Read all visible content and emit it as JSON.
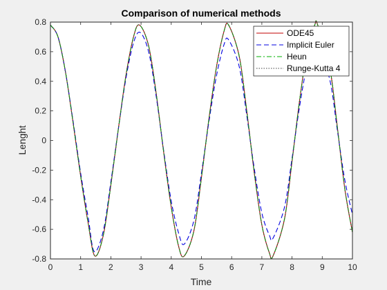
{
  "chart_data": {
    "type": "line",
    "title": "Comparison of numerical methods",
    "xlabel": "Time",
    "ylabel": "Lenght",
    "xlim": [
      0,
      10
    ],
    "ylim": [
      -0.8,
      0.8
    ],
    "xticks": [
      0,
      1,
      2,
      3,
      4,
      5,
      6,
      7,
      8,
      9,
      10
    ],
    "yticks": [
      -0.8,
      -0.6,
      -0.4,
      -0.2,
      0,
      0.2,
      0.4,
      0.6,
      0.8
    ],
    "xtick_labels": [
      "0",
      "1",
      "2",
      "3",
      "4",
      "5",
      "6",
      "7",
      "8",
      "9",
      "10"
    ],
    "ytick_labels": [
      "-0.8",
      "-0.6",
      "-0.4",
      "-0.2",
      "0",
      "0.2",
      "0.4",
      "0.6",
      "0.8"
    ],
    "grid": false,
    "legend_position": "top-right",
    "series": [
      {
        "name": "ODE45",
        "color": "#c00000",
        "style": "solid",
        "x": [
          0,
          0.25,
          0.5,
          0.75,
          1.0,
          1.25,
          1.47,
          1.75,
          2.0,
          2.25,
          2.5,
          2.75,
          2.95,
          3.25,
          3.5,
          3.75,
          4.0,
          4.25,
          4.43,
          4.75,
          5.0,
          5.25,
          5.5,
          5.75,
          5.9,
          6.25,
          6.5,
          6.75,
          7.0,
          7.25,
          7.37,
          7.75,
          8.0,
          8.25,
          8.5,
          8.75,
          8.85,
          9.25,
          9.5,
          9.75,
          10.0
        ],
        "y": [
          0.78,
          0.7,
          0.46,
          0.12,
          -0.24,
          -0.56,
          -0.78,
          -0.64,
          -0.3,
          0.08,
          0.44,
          0.7,
          0.78,
          0.64,
          0.32,
          -0.08,
          -0.45,
          -0.72,
          -0.78,
          -0.61,
          -0.25,
          0.15,
          0.5,
          0.74,
          0.78,
          0.57,
          0.2,
          -0.22,
          -0.57,
          -0.76,
          -0.78,
          -0.53,
          -0.14,
          0.27,
          0.61,
          0.78,
          0.78,
          0.49,
          0.09,
          -0.33,
          -0.62
        ]
      },
      {
        "name": "Implicit Euler",
        "color": "#0000e0",
        "style": "dashed",
        "x": [
          0,
          0.25,
          0.5,
          0.75,
          1.0,
          1.25,
          1.45,
          1.75,
          2.0,
          2.25,
          2.5,
          2.75,
          2.97,
          3.25,
          3.5,
          3.75,
          4.0,
          4.25,
          4.43,
          4.75,
          5.0,
          5.25,
          5.5,
          5.75,
          5.9,
          6.25,
          6.5,
          6.75,
          7.0,
          7.25,
          7.37,
          7.75,
          8.0,
          8.25,
          8.5,
          8.75,
          8.85,
          9.25,
          9.5,
          9.75,
          10.0
        ],
        "y": [
          0.78,
          0.7,
          0.46,
          0.13,
          -0.22,
          -0.52,
          -0.75,
          -0.61,
          -0.28,
          0.08,
          0.42,
          0.66,
          0.73,
          0.6,
          0.3,
          -0.07,
          -0.41,
          -0.63,
          -0.7,
          -0.54,
          -0.22,
          0.13,
          0.44,
          0.65,
          0.68,
          0.5,
          0.17,
          -0.19,
          -0.49,
          -0.64,
          -0.66,
          -0.45,
          -0.12,
          0.23,
          0.51,
          0.64,
          0.64,
          0.41,
          0.07,
          -0.27,
          -0.5
        ]
      },
      {
        "name": "Heun",
        "color": "#00b000",
        "style": "dashdot",
        "x": [
          0,
          0.25,
          0.5,
          0.75,
          1.0,
          1.25,
          1.47,
          1.75,
          2.0,
          2.25,
          2.5,
          2.75,
          2.95,
          3.25,
          3.5,
          3.75,
          4.0,
          4.25,
          4.43,
          4.75,
          5.0,
          5.25,
          5.5,
          5.75,
          5.9,
          6.25,
          6.5,
          6.75,
          7.0,
          7.25,
          7.37,
          7.75,
          8.0,
          8.25,
          8.5,
          8.75,
          8.85,
          9.25,
          9.5,
          9.75,
          10.0
        ],
        "y": [
          0.78,
          0.7,
          0.46,
          0.12,
          -0.24,
          -0.56,
          -0.78,
          -0.64,
          -0.3,
          0.08,
          0.44,
          0.7,
          0.78,
          0.64,
          0.32,
          -0.08,
          -0.45,
          -0.72,
          -0.78,
          -0.61,
          -0.25,
          0.15,
          0.5,
          0.74,
          0.78,
          0.57,
          0.2,
          -0.22,
          -0.57,
          -0.76,
          -0.78,
          -0.53,
          -0.14,
          0.27,
          0.61,
          0.78,
          0.78,
          0.49,
          0.09,
          -0.33,
          -0.62
        ]
      },
      {
        "name": "Runge-Kutta 4",
        "color": "#404040",
        "style": "dotted",
        "x": [
          0,
          0.25,
          0.5,
          0.75,
          1.0,
          1.25,
          1.47,
          1.75,
          2.0,
          2.25,
          2.5,
          2.75,
          2.95,
          3.25,
          3.5,
          3.75,
          4.0,
          4.25,
          4.43,
          4.75,
          5.0,
          5.25,
          5.5,
          5.75,
          5.9,
          6.25,
          6.5,
          6.75,
          7.0,
          7.25,
          7.37,
          7.75,
          8.0,
          8.25,
          8.5,
          8.75,
          8.85,
          9.25,
          9.5,
          9.75,
          10.0
        ],
        "y": [
          0.78,
          0.7,
          0.46,
          0.12,
          -0.24,
          -0.56,
          -0.78,
          -0.64,
          -0.3,
          0.08,
          0.44,
          0.7,
          0.78,
          0.64,
          0.32,
          -0.08,
          -0.45,
          -0.72,
          -0.78,
          -0.61,
          -0.25,
          0.15,
          0.5,
          0.74,
          0.78,
          0.57,
          0.2,
          -0.22,
          -0.57,
          -0.76,
          -0.78,
          -0.53,
          -0.14,
          0.27,
          0.61,
          0.78,
          0.78,
          0.49,
          0.09,
          -0.33,
          -0.62
        ]
      }
    ]
  }
}
